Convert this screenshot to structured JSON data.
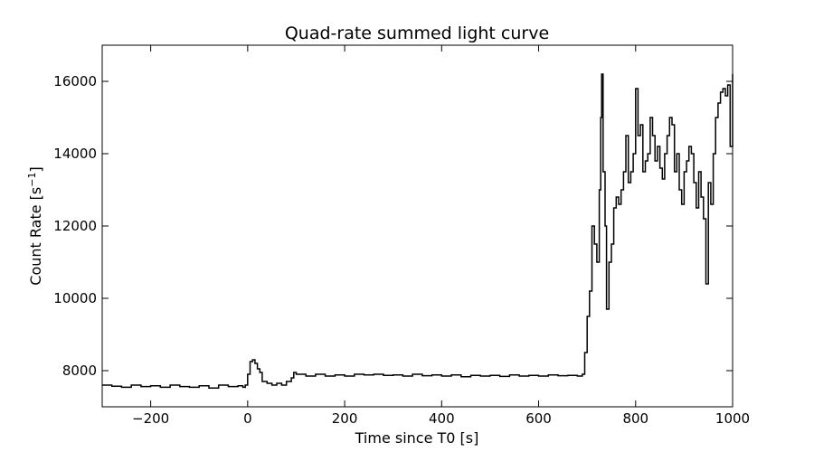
{
  "chart_data": {
    "type": "line",
    "title": "Quad-rate summed light curve",
    "xlabel": "Time since T0 [s]",
    "ylabel": "Count Rate [s",
    "ylabel_sup": "−1",
    "ylabel_end": "]",
    "xlim": [
      -300,
      1000
    ],
    "ylim": [
      7000,
      17000
    ],
    "xticks": [
      -200,
      0,
      200,
      400,
      600,
      800,
      1000
    ],
    "xtick_labels": [
      "−200",
      "0",
      "200",
      "400",
      "600",
      "800",
      "1000"
    ],
    "yticks": [
      8000,
      10000,
      12000,
      14000,
      16000
    ],
    "ytick_labels": [
      "8000",
      "10000",
      "12000",
      "14000",
      "16000"
    ],
    "grid": false,
    "legend": "none",
    "line_color": "#000000",
    "series": [
      {
        "points": [
          [
            -300,
            7600
          ],
          [
            -280,
            7570
          ],
          [
            -260,
            7540
          ],
          [
            -240,
            7600
          ],
          [
            -220,
            7560
          ],
          [
            -200,
            7580
          ],
          [
            -180,
            7540
          ],
          [
            -160,
            7600
          ],
          [
            -140,
            7560
          ],
          [
            -120,
            7540
          ],
          [
            -100,
            7580
          ],
          [
            -80,
            7520
          ],
          [
            -60,
            7600
          ],
          [
            -40,
            7560
          ],
          [
            -20,
            7580
          ],
          [
            -10,
            7540
          ],
          [
            -5,
            7600
          ],
          [
            0,
            7900
          ],
          [
            5,
            8250
          ],
          [
            10,
            8300
          ],
          [
            15,
            8200
          ],
          [
            20,
            8050
          ],
          [
            25,
            7950
          ],
          [
            30,
            7700
          ],
          [
            40,
            7650
          ],
          [
            50,
            7600
          ],
          [
            60,
            7650
          ],
          [
            70,
            7600
          ],
          [
            80,
            7700
          ],
          [
            90,
            7800
          ],
          [
            95,
            7950
          ],
          [
            100,
            7900
          ],
          [
            120,
            7850
          ],
          [
            140,
            7900
          ],
          [
            160,
            7850
          ],
          [
            180,
            7880
          ],
          [
            200,
            7850
          ],
          [
            220,
            7900
          ],
          [
            240,
            7880
          ],
          [
            260,
            7900
          ],
          [
            280,
            7870
          ],
          [
            300,
            7880
          ],
          [
            320,
            7850
          ],
          [
            340,
            7900
          ],
          [
            360,
            7860
          ],
          [
            380,
            7880
          ],
          [
            400,
            7850
          ],
          [
            420,
            7880
          ],
          [
            440,
            7830
          ],
          [
            460,
            7870
          ],
          [
            480,
            7850
          ],
          [
            500,
            7870
          ],
          [
            520,
            7840
          ],
          [
            540,
            7880
          ],
          [
            560,
            7850
          ],
          [
            580,
            7870
          ],
          [
            600,
            7850
          ],
          [
            620,
            7880
          ],
          [
            640,
            7860
          ],
          [
            660,
            7870
          ],
          [
            680,
            7850
          ],
          [
            690,
            7900
          ],
          [
            695,
            8500
          ],
          [
            700,
            9500
          ],
          [
            705,
            10200
          ],
          [
            710,
            12000
          ],
          [
            715,
            11500
          ],
          [
            720,
            11000
          ],
          [
            725,
            13000
          ],
          [
            728,
            15000
          ],
          [
            730,
            16200
          ],
          [
            733,
            13500
          ],
          [
            737,
            12000
          ],
          [
            740,
            9700
          ],
          [
            745,
            11000
          ],
          [
            750,
            11500
          ],
          [
            755,
            12500
          ],
          [
            760,
            12800
          ],
          [
            765,
            12600
          ],
          [
            770,
            13000
          ],
          [
            775,
            13500
          ],
          [
            780,
            14500
          ],
          [
            785,
            13200
          ],
          [
            790,
            13500
          ],
          [
            795,
            14000
          ],
          [
            800,
            15800
          ],
          [
            805,
            14500
          ],
          [
            810,
            14800
          ],
          [
            815,
            13500
          ],
          [
            820,
            13800
          ],
          [
            825,
            14000
          ],
          [
            830,
            15000
          ],
          [
            835,
            14500
          ],
          [
            840,
            13800
          ],
          [
            845,
            14200
          ],
          [
            850,
            13600
          ],
          [
            855,
            13300
          ],
          [
            860,
            14000
          ],
          [
            865,
            14500
          ],
          [
            870,
            15000
          ],
          [
            875,
            14800
          ],
          [
            880,
            13500
          ],
          [
            885,
            14000
          ],
          [
            890,
            13000
          ],
          [
            895,
            12600
          ],
          [
            900,
            13500
          ],
          [
            905,
            13800
          ],
          [
            910,
            14200
          ],
          [
            915,
            14000
          ],
          [
            920,
            13200
          ],
          [
            925,
            12500
          ],
          [
            930,
            13500
          ],
          [
            935,
            12800
          ],
          [
            940,
            12200
          ],
          [
            945,
            10400
          ],
          [
            950,
            13200
          ],
          [
            955,
            12600
          ],
          [
            960,
            14000
          ],
          [
            965,
            15000
          ],
          [
            970,
            15400
          ],
          [
            975,
            15700
          ],
          [
            980,
            15800
          ],
          [
            985,
            15600
          ],
          [
            990,
            15900
          ],
          [
            995,
            14200
          ],
          [
            1000,
            16200
          ]
        ]
      }
    ]
  }
}
